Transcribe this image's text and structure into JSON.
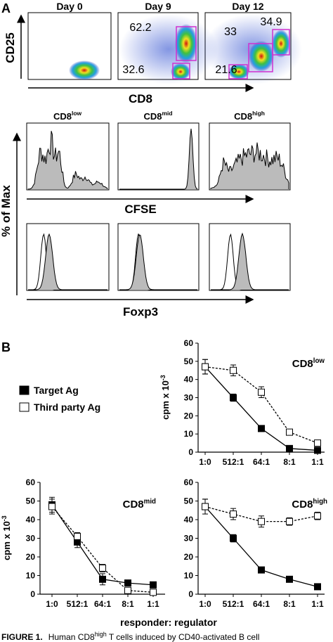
{
  "panel_a": {
    "label": "A",
    "dot_plots": {
      "ylabel": "CD25",
      "xlabel": "CD8",
      "plots": [
        {
          "title": "Day 0"
        },
        {
          "title": "Day 9",
          "gates": [
            62.2,
            32.6
          ]
        },
        {
          "title": "Day 12",
          "gates": [
            33,
            34.9,
            21.6
          ]
        }
      ]
    },
    "histograms": {
      "ylabel": "% of Max",
      "titles": [
        {
          "base": "CD8",
          "sup": "low"
        },
        {
          "base": "CD8",
          "sup": "mid"
        },
        {
          "base": "CD8",
          "sup": "high"
        }
      ],
      "rows": [
        {
          "xlabel": "CFSE"
        },
        {
          "xlabel": "Foxp3"
        }
      ]
    }
  },
  "panel_b": {
    "label": "B",
    "xlabel": "responder: regulator"
  },
  "chart_data": [
    {
      "type": "line",
      "title": {
        "base": "CD8",
        "sup": "low"
      },
      "ylabel": {
        "base": "cpm x 10",
        "sup": "-3"
      },
      "categories": [
        "1:0",
        "512:1",
        "64:1",
        "8:1",
        "1:1"
      ],
      "series": [
        {
          "name": "Target Ag",
          "color": "#000000",
          "marker_fill": "#000000",
          "line_style": "solid",
          "values": [
            47,
            30,
            13,
            2,
            1
          ],
          "errors": [
            4,
            2,
            1,
            0.5,
            0.5
          ]
        },
        {
          "name": "Third party Ag",
          "color": "#000000",
          "marker_fill": "#ffffff",
          "line_style": "dashed",
          "values": [
            47,
            45,
            33,
            11,
            5
          ],
          "errors": [
            4,
            3,
            3,
            1,
            1
          ]
        }
      ],
      "ylim": [
        0,
        60
      ],
      "yticks": [
        0,
        10,
        20,
        30,
        40,
        50,
        60
      ]
    },
    {
      "type": "line",
      "title": {
        "base": "CD8",
        "sup": "mid"
      },
      "ylabel": {
        "base": "cpm x 10",
        "sup": "-3"
      },
      "categories": [
        "1:0",
        "512:1",
        "64:1",
        "8:1",
        "1:1"
      ],
      "series": [
        {
          "name": "Target Ag",
          "color": "#000000",
          "marker_fill": "#000000",
          "line_style": "solid",
          "values": [
            48,
            28,
            8,
            6,
            5
          ],
          "errors": [
            4,
            3,
            3,
            1,
            1
          ]
        },
        {
          "name": "Third party Ag",
          "color": "#000000",
          "marker_fill": "#ffffff",
          "line_style": "dashed",
          "values": [
            47,
            31,
            14,
            2,
            1
          ],
          "errors": [
            4,
            2,
            2,
            1,
            1
          ]
        }
      ],
      "ylim": [
        0,
        60
      ],
      "yticks": [
        0,
        10,
        20,
        30,
        40,
        50,
        60
      ]
    },
    {
      "type": "line",
      "title": {
        "base": "CD8",
        "sup": "high"
      },
      "categories": [
        "1:0",
        "512:1",
        "64:1",
        "8:1",
        "1:1"
      ],
      "series": [
        {
          "name": "Target Ag",
          "color": "#000000",
          "marker_fill": "#000000",
          "line_style": "solid",
          "values": [
            47,
            30,
            13,
            8,
            4
          ],
          "errors": [
            4,
            2,
            1,
            1,
            1
          ]
        },
        {
          "name": "Third party Ag",
          "color": "#000000",
          "marker_fill": "#ffffff",
          "line_style": "dashed",
          "values": [
            47,
            43,
            39,
            39,
            42
          ],
          "errors": [
            4,
            3,
            3,
            2,
            2
          ]
        }
      ],
      "ylim": [
        0,
        60
      ],
      "yticks": [
        0,
        10,
        20,
        30,
        40,
        50,
        60
      ]
    }
  ],
  "caption": {
    "label": "FIGURE 1.",
    "text": "Human CD8",
    "sup": "high",
    "text_end": " T cells induced by CD40-activated B cell"
  }
}
